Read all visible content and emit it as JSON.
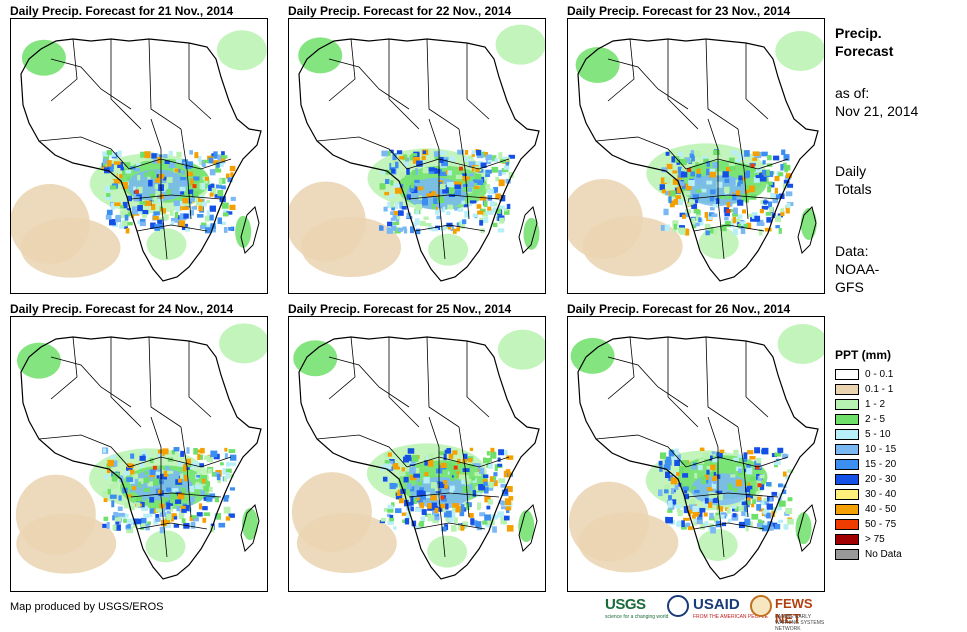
{
  "panels": [
    {
      "title": "Daily Precip. Forecast for 21 Nov., 2014",
      "seed": 1
    },
    {
      "title": "Daily Precip. Forecast for 22 Nov., 2014",
      "seed": 2
    },
    {
      "title": "Daily Precip. Forecast for 23 Nov., 2014",
      "seed": 3
    },
    {
      "title": "Daily Precip. Forecast for 24 Nov., 2014",
      "seed": 4
    },
    {
      "title": "Daily Precip. Forecast for 25 Nov., 2014",
      "seed": 5
    },
    {
      "title": "Daily Precip. Forecast for 26 Nov., 2014",
      "seed": 6
    }
  ],
  "side": {
    "heading_line1": "Precip.",
    "heading_line2": "Forecast",
    "asof_line1": "as of:",
    "asof_line2": "Nov 21, 2014",
    "totals_line1": "Daily",
    "totals_line2": "Totals",
    "data_line1": "Data:",
    "data_line2": "NOAA-",
    "data_line3": "GFS"
  },
  "legend": {
    "title": "PPT (mm)",
    "items": [
      {
        "label": "0 - 0.1",
        "color": "#ffffff"
      },
      {
        "label": "0.1 - 1",
        "color": "#ead4b0"
      },
      {
        "label": "1 - 2",
        "color": "#b8f2b0"
      },
      {
        "label": "2 - 5",
        "color": "#6ee06a"
      },
      {
        "label": "5 - 10",
        "color": "#b8eef8"
      },
      {
        "label": "10 - 15",
        "color": "#7ab8f4"
      },
      {
        "label": "15 - 20",
        "color": "#3c8ef0"
      },
      {
        "label": "20 - 30",
        "color": "#1450e6"
      },
      {
        "label": "30 - 40",
        "color": "#fff07c"
      },
      {
        "label": "40 - 50",
        "color": "#f4a000"
      },
      {
        "label": "50 - 75",
        "color": "#f03c00"
      },
      {
        "label": "> 75",
        "color": "#a00000"
      },
      {
        "label": "No Data",
        "color": "#999999"
      }
    ]
  },
  "credit": "Map produced by USGS/EROS",
  "logos": {
    "usgs": "USGS",
    "usgs_tagline": "science for a changing world",
    "usaid": "USAID",
    "usaid_tagline": "FROM THE AMERICAN PEOPLE",
    "fews": "FEWS NET",
    "fews_tagline": "FAMINE EARLY WARNING SYSTEMS NETWORK"
  }
}
